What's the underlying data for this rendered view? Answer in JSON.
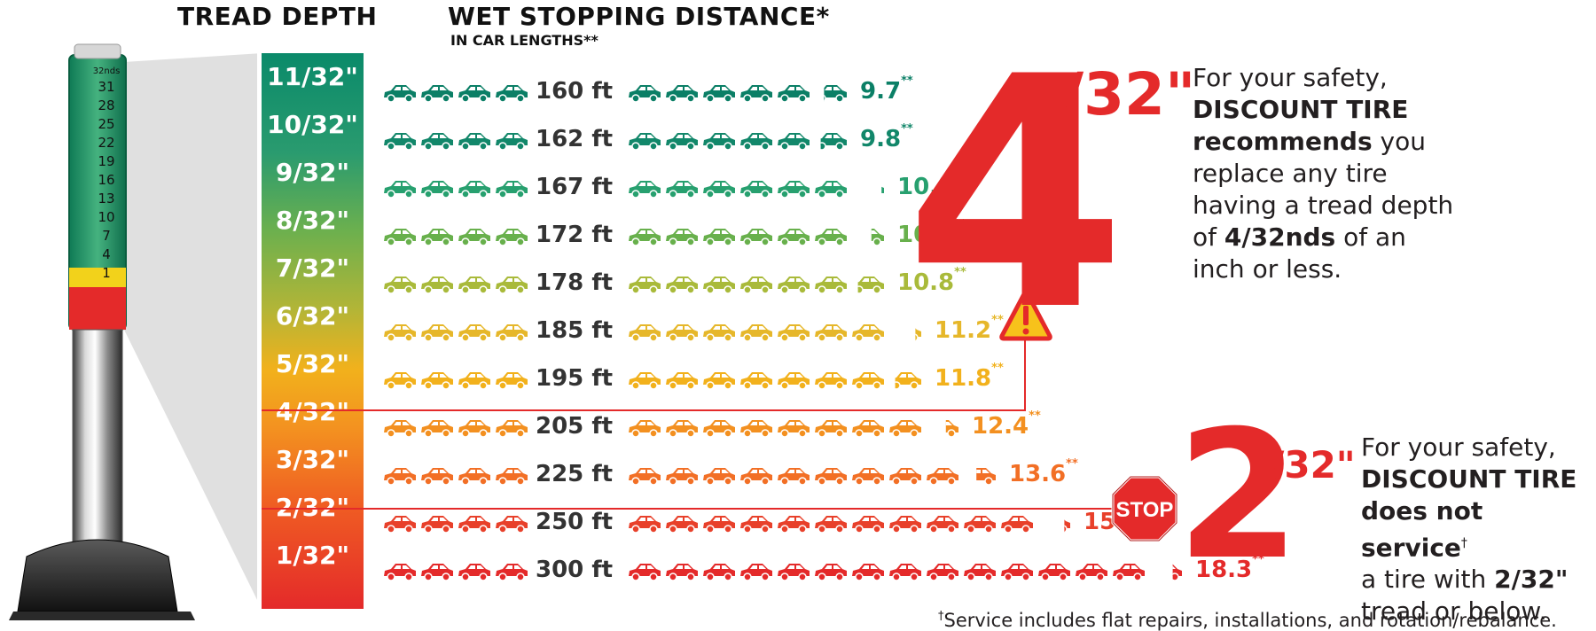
{
  "headers": {
    "tread_depth": "TREAD DEPTH",
    "wet_stopping": "WET STOPPING DISTANCE*",
    "wet_sub": "IN CAR LENGTHS**"
  },
  "gauge": {
    "unit": "32nds",
    "ticks": [
      "31",
      "28",
      "25",
      "22",
      "19",
      "16",
      "13",
      "10",
      "7",
      "4",
      "1"
    ]
  },
  "rows": [
    {
      "depth": "11/32\"",
      "distance": "160 ft",
      "car_lengths": "9.7",
      "mark": "**",
      "car_count": 9.7,
      "color": "#0b7f66"
    },
    {
      "depth": "10/32\"",
      "distance": "162 ft",
      "car_lengths": "9.8",
      "mark": "**",
      "car_count": 9.8,
      "color": "#12876a"
    },
    {
      "depth": "9/32\"",
      "distance": "167 ft",
      "car_lengths": "10.1",
      "mark": "**",
      "car_count": 10.1,
      "color": "#27a06f"
    },
    {
      "depth": "8/32\"",
      "distance": "172 ft",
      "car_lengths": "10.4",
      "mark": "**",
      "car_count": 10.4,
      "color": "#68b04c"
    },
    {
      "depth": "7/32\"",
      "distance": "178 ft",
      "car_lengths": "10.8",
      "mark": "**",
      "car_count": 10.8,
      "color": "#a9ba3a"
    },
    {
      "depth": "6/32\"",
      "distance": "185 ft",
      "car_lengths": "11.2",
      "mark": "**",
      "car_count": 11.2,
      "color": "#e6b72a"
    },
    {
      "depth": "5/32\"",
      "distance": "195 ft",
      "car_lengths": "11.8",
      "mark": "**",
      "car_count": 11.8,
      "color": "#f2b11c"
    },
    {
      "depth": "4/32\"",
      "distance": "205 ft",
      "car_lengths": "12.4",
      "mark": "**",
      "car_count": 12.4,
      "color": "#f39020"
    },
    {
      "depth": "3/32\"",
      "distance": "225 ft",
      "car_lengths": "13.6",
      "mark": "**",
      "car_count": 13.6,
      "color": "#f26f25"
    },
    {
      "depth": "2/32\"",
      "distance": "250 ft",
      "car_lengths": "15.2",
      "mark": "**",
      "car_count": 15.2,
      "color": "#e8402a"
    },
    {
      "depth": "1/32\"",
      "distance": "300 ft",
      "car_lengths": "18.3",
      "mark": "**",
      "car_count": 18.3,
      "color": "#e42a2a"
    }
  ],
  "callout_4": {
    "big": "4",
    "sub": "/32\"",
    "l1": "For your safety,",
    "l2": "DISCOUNT TIRE",
    "l3a": "recommends",
    "l3b": " you",
    "l4": "replace any tire",
    "l5": "having a tread depth",
    "l6a": "of ",
    "l6b": "4/32nds",
    "l6c": " of an",
    "l7": "inch or less."
  },
  "callout_2": {
    "big": "2",
    "sub": "/32\"",
    "l1": "For your safety,",
    "l2": "DISCOUNT TIRE",
    "l3": "does not service",
    "l3_mark": "†",
    "l4a": "a tire with ",
    "l4b": "2/32\"",
    "l5": "tread or below."
  },
  "stop_sign": "STOP",
  "footnote": {
    "mark": "†",
    "text": "Service includes flat repairs, installations, and rotation/rebalance."
  },
  "colors": {
    "red": "#e42a2a",
    "gauge_green": "#1f9a68",
    "warning_yellow": "#f7c21b"
  },
  "icons": [
    "car-icon",
    "warning-icon",
    "stop-sign-icon",
    "tread-gauge-icon"
  ]
}
